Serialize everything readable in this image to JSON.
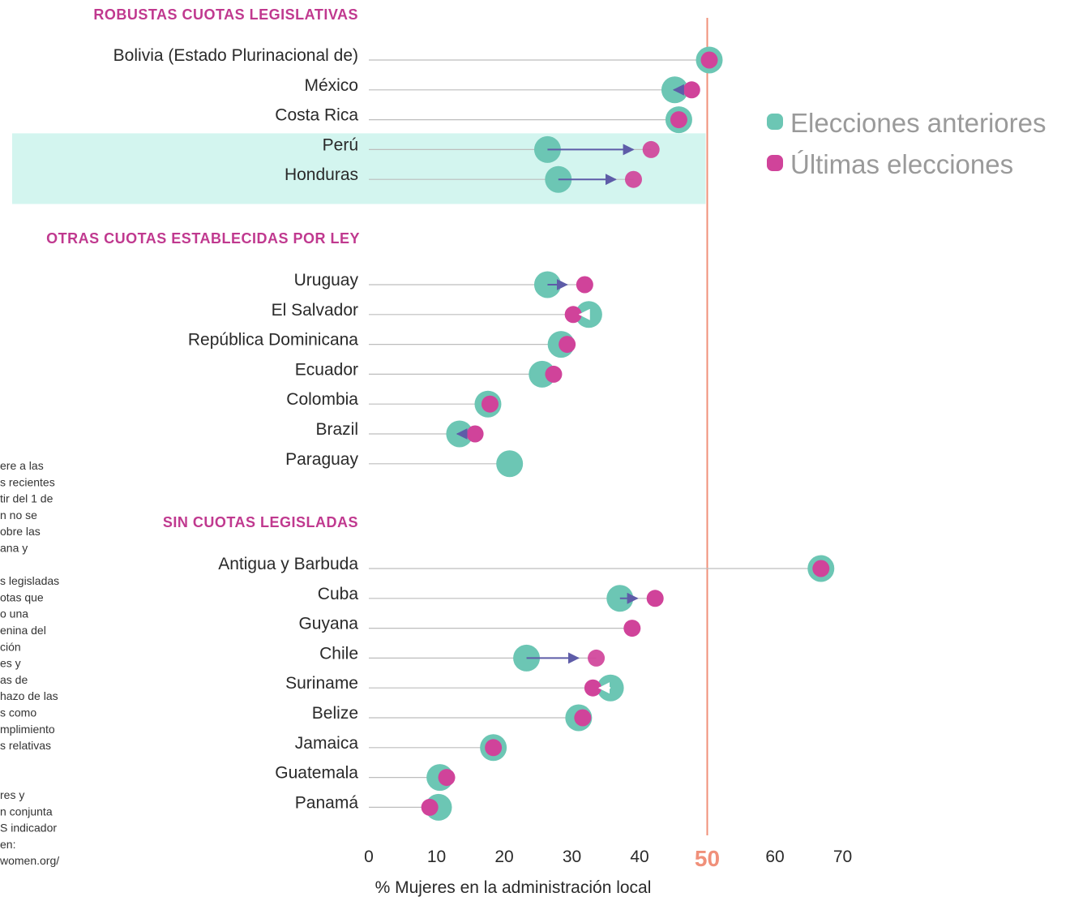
{
  "chart_data": {
    "type": "dot",
    "xlabel": "% Mujeres en la administración local",
    "xticks": [
      0,
      10,
      20,
      30,
      40,
      50,
      60,
      70
    ],
    "xlim": [
      0,
      70
    ],
    "reference_line": 50,
    "highlight_rows": [
      "Perú",
      "Honduras"
    ],
    "series": [
      {
        "name": "Elecciones anteriores",
        "color": "#6cc6b4"
      },
      {
        "name": "Últimas elecciones",
        "color": "#d0439a"
      }
    ],
    "groups": [
      {
        "title": "ROBUSTAS CUOTAS LEGISLATIVAS",
        "rows": [
          {
            "country": "Bolivia (Estado Plurinacional de)",
            "prev": 50.3,
            "last": 50.3
          },
          {
            "country": "México",
            "prev": 45.2,
            "last": 47.7
          },
          {
            "country": "Costa Rica",
            "prev": 45.8,
            "last": 45.8
          },
          {
            "country": "Perú",
            "prev": 26.4,
            "last": 41.7
          },
          {
            "country": "Honduras",
            "prev": 28.0,
            "last": 39.1
          }
        ]
      },
      {
        "title": "OTRAS CUOTAS ESTABLECIDAS POR LEY",
        "rows": [
          {
            "country": "Uruguay",
            "prev": 26.4,
            "last": 31.9
          },
          {
            "country": "El Salvador",
            "prev": 32.5,
            "last": 30.2
          },
          {
            "country": "República Dominicana",
            "prev": 28.4,
            "last": 29.3
          },
          {
            "country": "Ecuador",
            "prev": 25.6,
            "last": 27.3
          },
          {
            "country": "Colombia",
            "prev": 17.6,
            "last": 17.9
          },
          {
            "country": "Brazil",
            "prev": 13.4,
            "last": 15.7
          },
          {
            "country": "Paraguay",
            "prev": 20.8,
            "last": null
          }
        ]
      },
      {
        "title": "SIN CUOTAS LEGISLADAS",
        "rows": [
          {
            "country": "Antigua y Barbuda",
            "prev": 66.8,
            "last": 66.8
          },
          {
            "country": "Cuba",
            "prev": 37.1,
            "last": 42.3
          },
          {
            "country": "Guyana",
            "prev": null,
            "last": 38.9
          },
          {
            "country": "Chile",
            "prev": 23.3,
            "last": 33.6
          },
          {
            "country": "Suriname",
            "prev": 35.7,
            "last": 33.1
          },
          {
            "country": "Belize",
            "prev": 31.0,
            "last": 31.6
          },
          {
            "country": "Jamaica",
            "prev": 18.4,
            "last": 18.4
          },
          {
            "country": "Guatemala",
            "prev": 10.5,
            "last": 11.5
          },
          {
            "country": "Panamá",
            "prev": 10.3,
            "last": 9.0
          }
        ]
      }
    ]
  },
  "notes": [
    "ere a las",
    "s recientes",
    "tir del 1 de",
    "n no se",
    "obre las",
    "ana y",
    "",
    "s legisladas",
    "otas que",
    "o una",
    "enina del",
    "ción",
    "es y",
    "as de",
    "hazo de las",
    "s como",
    "mplimiento",
    "s relativas",
    "",
    "",
    "res y",
    "n conjunta",
    "S indicador",
    "en:",
    "women.org/"
  ]
}
